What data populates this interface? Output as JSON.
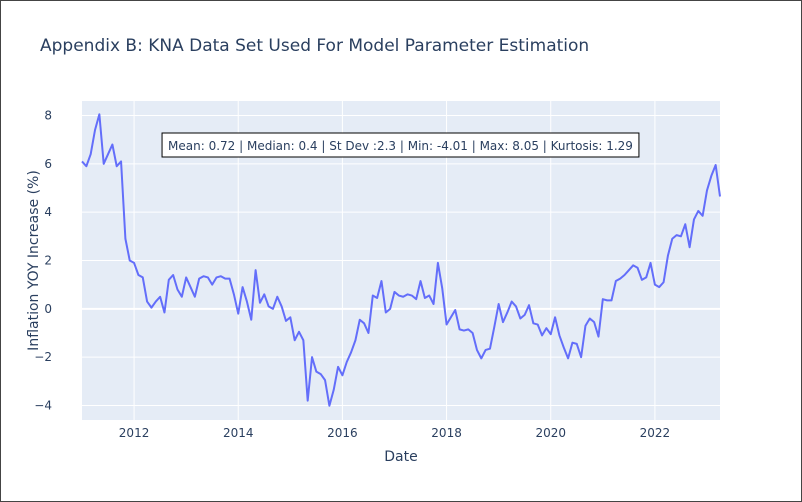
{
  "chart_data": {
    "type": "line",
    "title": "Appendix B: KNA Data Set Used For Model Parameter Estimation",
    "xlabel": "Date",
    "ylabel": "Inflation YOY Increase (%)",
    "xlim": [
      "2011-01",
      "2023-04"
    ],
    "ylim": [
      -4.6,
      8.6
    ],
    "x_ticks": [
      "2012",
      "2014",
      "2016",
      "2018",
      "2020",
      "2022"
    ],
    "y_ticks": [
      "−4",
      "−2",
      "0",
      "2",
      "4",
      "6",
      "8"
    ],
    "annotation": "Mean: 0.72 | Median: 0.4 | St Dev :2.3 | Min: -4.01 | Max: 8.05 | Kurtosis: 1.29",
    "grid": true,
    "series": [
      {
        "color": "#636efa",
        "x": [
          "2011-01",
          "2011-02",
          "2011-03",
          "2011-04",
          "2011-05",
          "2011-06",
          "2011-07",
          "2011-08",
          "2011-09",
          "2011-10",
          "2011-11",
          "2011-12",
          "2012-01",
          "2012-02",
          "2012-03",
          "2012-04",
          "2012-05",
          "2012-06",
          "2012-07",
          "2012-08",
          "2012-09",
          "2012-10",
          "2012-11",
          "2012-12",
          "2013-01",
          "2013-02",
          "2013-03",
          "2013-04",
          "2013-05",
          "2013-06",
          "2013-07",
          "2013-08",
          "2013-09",
          "2013-10",
          "2013-11",
          "2013-12",
          "2014-01",
          "2014-02",
          "2014-03",
          "2014-04",
          "2014-05",
          "2014-06",
          "2014-07",
          "2014-08",
          "2014-09",
          "2014-10",
          "2014-11",
          "2014-12",
          "2015-01",
          "2015-02",
          "2015-03",
          "2015-04",
          "2015-05",
          "2015-06",
          "2015-07",
          "2015-08",
          "2015-09",
          "2015-10",
          "2015-11",
          "2015-12",
          "2016-01",
          "2016-02",
          "2016-03",
          "2016-04",
          "2016-05",
          "2016-06",
          "2016-07",
          "2016-08",
          "2016-09",
          "2016-10",
          "2016-11",
          "2016-12",
          "2017-01",
          "2017-02",
          "2017-03",
          "2017-04",
          "2017-05",
          "2017-06",
          "2017-07",
          "2017-08",
          "2017-09",
          "2017-10",
          "2017-11",
          "2017-12",
          "2018-01",
          "2018-02",
          "2018-03",
          "2018-04",
          "2018-05",
          "2018-06",
          "2018-07",
          "2018-08",
          "2018-09",
          "2018-10",
          "2018-11",
          "2018-12",
          "2019-01",
          "2019-02",
          "2019-03",
          "2019-04",
          "2019-05",
          "2019-06",
          "2019-07",
          "2019-08",
          "2019-09",
          "2019-10",
          "2019-11",
          "2019-12",
          "2020-01",
          "2020-02",
          "2020-03",
          "2020-04",
          "2020-05",
          "2020-06",
          "2020-07",
          "2020-08",
          "2020-09",
          "2020-10",
          "2020-11",
          "2020-12",
          "2021-01",
          "2021-02",
          "2021-03",
          "2021-04",
          "2021-05",
          "2021-06",
          "2021-07",
          "2021-08",
          "2021-09",
          "2021-10",
          "2021-11",
          "2021-12",
          "2022-01",
          "2022-02",
          "2022-03",
          "2022-04",
          "2022-05",
          "2022-06",
          "2022-07",
          "2022-08",
          "2022-09",
          "2022-10",
          "2022-11",
          "2022-12",
          "2023-01",
          "2023-02",
          "2023-03",
          "2023-04"
        ],
        "y": [
          6.1,
          5.9,
          6.4,
          7.4,
          8.05,
          6.0,
          6.4,
          6.8,
          5.9,
          6.1,
          2.9,
          2.0,
          1.9,
          1.4,
          1.3,
          0.3,
          0.05,
          0.3,
          0.5,
          -0.15,
          1.2,
          1.4,
          0.8,
          0.5,
          1.3,
          0.9,
          0.5,
          1.25,
          1.35,
          1.3,
          1.0,
          1.3,
          1.35,
          1.25,
          1.25,
          0.6,
          -0.2,
          0.9,
          0.3,
          -0.45,
          1.6,
          0.25,
          0.6,
          0.1,
          0.0,
          0.5,
          0.1,
          -0.5,
          -0.35,
          -1.3,
          -0.95,
          -1.3,
          -3.8,
          -2.0,
          -2.6,
          -2.7,
          -2.95,
          -4.01,
          -3.35,
          -2.4,
          -2.75,
          -2.2,
          -1.8,
          -1.3,
          -0.45,
          -0.6,
          -1.0,
          0.55,
          0.45,
          1.15,
          -0.15,
          0.0,
          0.7,
          0.55,
          0.5,
          0.6,
          0.55,
          0.4,
          1.15,
          0.45,
          0.55,
          0.2,
          1.9,
          0.85,
          -0.65,
          -0.35,
          -0.05,
          -0.85,
          -0.9,
          -0.85,
          -1.0,
          -1.7,
          -2.05,
          -1.7,
          -1.65,
          -0.75,
          0.2,
          -0.55,
          -0.15,
          0.3,
          0.1,
          -0.4,
          -0.25,
          0.15,
          -0.6,
          -0.65,
          -1.1,
          -0.8,
          -1.05,
          -0.35,
          -1.1,
          -1.6,
          -2.05,
          -1.4,
          -1.45,
          -2.0,
          -0.7,
          -0.4,
          -0.55,
          -1.15,
          0.4,
          0.35,
          0.35,
          1.15,
          1.25,
          1.4,
          1.6,
          1.8,
          1.7,
          1.2,
          1.3,
          1.9,
          1.0,
          0.9,
          1.1,
          2.2,
          2.9,
          3.05,
          3.0,
          3.5,
          2.55,
          3.7,
          4.05,
          3.85,
          4.9,
          5.5,
          5.95,
          4.65
        ]
      }
    ]
  }
}
